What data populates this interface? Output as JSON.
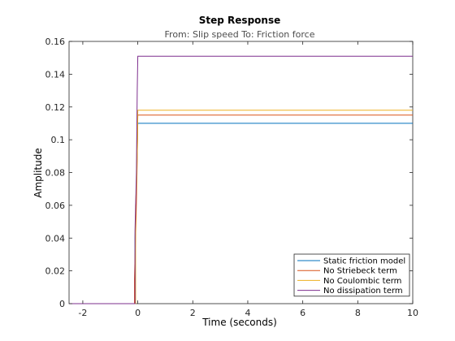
{
  "chart_data": {
    "type": "line",
    "title": "Step Response",
    "subtitle": "From: Slip speed  To: Friction force",
    "xlabel": "Time (seconds)",
    "ylabel": "Amplitude",
    "xlim": [
      -2.5,
      10
    ],
    "ylim": [
      0,
      0.16
    ],
    "xticks": [
      -2,
      0,
      2,
      4,
      6,
      8,
      10
    ],
    "yticks": [
      0,
      0.02,
      0.04,
      0.06,
      0.08,
      0.1,
      0.12,
      0.14,
      0.16
    ],
    "ytick_labels": [
      "0",
      "0.02",
      "0.04",
      "0.06",
      "0.08",
      "0.1",
      "0.12",
      "0.14",
      "0.16"
    ],
    "xtick_labels": [
      "-2",
      "0",
      "2",
      "4",
      "6",
      "8",
      "10"
    ],
    "grid": false,
    "legend_position": "bottom-right",
    "series": [
      {
        "name": "Static friction model",
        "color": "#0072bd",
        "x": [
          -2.5,
          -0.1,
          -0.1,
          -0.05,
          -0.02,
          0,
          10
        ],
        "y": [
          0,
          0,
          0.04,
          0.07,
          0.095,
          0.11,
          0.11
        ]
      },
      {
        "name": "No Striebeck term",
        "color": "#d95319",
        "x": [
          -2.5,
          -0.12,
          -0.12,
          -0.06,
          -0.03,
          0,
          10
        ],
        "y": [
          0,
          0,
          0.015,
          0.055,
          0.08,
          0.115,
          0.115
        ]
      },
      {
        "name": "No Coulombic term",
        "color": "#edb120",
        "x": [
          -2.5,
          -0.08,
          -0.08,
          -0.04,
          -0.01,
          0,
          10
        ],
        "y": [
          0,
          0,
          0.06,
          0.075,
          0.1,
          0.118,
          0.118
        ]
      },
      {
        "name": "No dissipation term",
        "color": "#7e2f8e",
        "x": [
          -2.5,
          -0.1,
          -0.1,
          -0.05,
          -0.02,
          0,
          10
        ],
        "y": [
          0,
          0,
          0.045,
          0.08,
          0.13,
          0.151,
          0.151
        ]
      }
    ]
  }
}
